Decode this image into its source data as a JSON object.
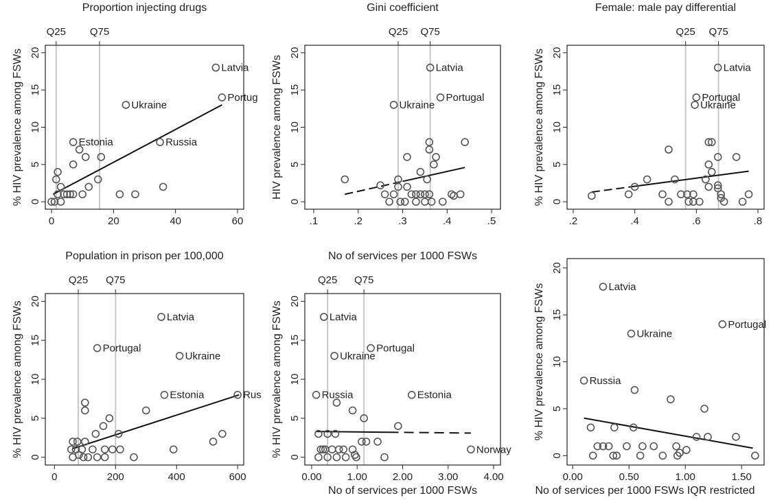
{
  "colors": {
    "point": "#555555",
    "fit": "#111111",
    "quartile": "#c8c8c8",
    "axis": "#222222"
  },
  "chart_data": [
    {
      "type": "scatter",
      "title": "Proportion injecting drugs",
      "ylabel": "% HIV prevalence among FSWs",
      "xlabel": "",
      "xlim": [
        -2,
        62
      ],
      "ylim": [
        -1,
        21
      ],
      "xticks": [
        0,
        20,
        40,
        60
      ],
      "xtick_labels": [
        "0",
        "20",
        "40",
        "60"
      ],
      "yticks": [
        0,
        5,
        10,
        15,
        20
      ],
      "ytick_labels": [
        "0",
        "5",
        "10",
        "15",
        "20"
      ],
      "quartiles": [
        {
          "label": "Q25",
          "x": 1.5
        },
        {
          "label": "Q75",
          "x": 15.5
        }
      ],
      "fit": {
        "x": [
          0.5,
          55
        ],
        "y": [
          1.0,
          13.0
        ],
        "dashed_from": null
      },
      "points": [
        {
          "x": 53,
          "y": 18,
          "label": "Latvia"
        },
        {
          "x": 55,
          "y": 14,
          "label": "Portug"
        },
        {
          "x": 24,
          "y": 13,
          "label": "Ukraine"
        },
        {
          "x": 7,
          "y": 8,
          "label": "Estonia"
        },
        {
          "x": 35,
          "y": 8,
          "label": "Russia"
        },
        {
          "x": 9,
          "y": 7
        },
        {
          "x": 11,
          "y": 6
        },
        {
          "x": 16,
          "y": 6
        },
        {
          "x": 7,
          "y": 5
        },
        {
          "x": 2,
          "y": 4
        },
        {
          "x": 1.5,
          "y": 3
        },
        {
          "x": 15,
          "y": 3
        },
        {
          "x": 3,
          "y": 2
        },
        {
          "x": 12,
          "y": 2
        },
        {
          "x": 36,
          "y": 2
        },
        {
          "x": 2,
          "y": 1
        },
        {
          "x": 4,
          "y": 1
        },
        {
          "x": 5,
          "y": 1
        },
        {
          "x": 6,
          "y": 1
        },
        {
          "x": 7,
          "y": 1
        },
        {
          "x": 10,
          "y": 1
        },
        {
          "x": 22,
          "y": 1
        },
        {
          "x": 27,
          "y": 1
        },
        {
          "x": 0,
          "y": 0
        },
        {
          "x": 1,
          "y": 0
        },
        {
          "x": 3,
          "y": 0
        }
      ]
    },
    {
      "type": "scatter",
      "title": "Gini coefficient",
      "ylabel": "HIV prevalence among FSWs",
      "xlabel": "",
      "xlim": [
        0.08,
        0.52
      ],
      "ylim": [
        -1,
        21
      ],
      "xticks": [
        0.1,
        0.2,
        0.3,
        0.4,
        0.5
      ],
      "xtick_labels": [
        ".1",
        ".2",
        ".3",
        ".4",
        ".5"
      ],
      "yticks": [
        0,
        5,
        10,
        15,
        20
      ],
      "ytick_labels": [
        "0",
        "5",
        "10",
        "15",
        "20"
      ],
      "quartiles": [
        {
          "label": "Q25",
          "x": 0.29
        },
        {
          "label": "Q75",
          "x": 0.362
        }
      ],
      "fit": {
        "x": [
          0.17,
          0.44
        ],
        "y": [
          1.0,
          4.6
        ],
        "dashed_from": 0.3
      },
      "points": [
        {
          "x": 0.362,
          "y": 18,
          "label": "Latvia"
        },
        {
          "x": 0.385,
          "y": 14,
          "label": "Portugal"
        },
        {
          "x": 0.28,
          "y": 13,
          "label": "Ukraine"
        },
        {
          "x": 0.36,
          "y": 8
        },
        {
          "x": 0.44,
          "y": 8
        },
        {
          "x": 0.36,
          "y": 7
        },
        {
          "x": 0.31,
          "y": 6
        },
        {
          "x": 0.375,
          "y": 6
        },
        {
          "x": 0.37,
          "y": 5
        },
        {
          "x": 0.34,
          "y": 4
        },
        {
          "x": 0.17,
          "y": 3
        },
        {
          "x": 0.29,
          "y": 3
        },
        {
          "x": 0.355,
          "y": 3
        },
        {
          "x": 0.25,
          "y": 2.2
        },
        {
          "x": 0.29,
          "y": 2
        },
        {
          "x": 0.31,
          "y": 2
        },
        {
          "x": 0.26,
          "y": 1
        },
        {
          "x": 0.28,
          "y": 1
        },
        {
          "x": 0.32,
          "y": 1
        },
        {
          "x": 0.33,
          "y": 1
        },
        {
          "x": 0.34,
          "y": 1
        },
        {
          "x": 0.35,
          "y": 1
        },
        {
          "x": 0.36,
          "y": 1
        },
        {
          "x": 0.41,
          "y": 1
        },
        {
          "x": 0.415,
          "y": 0.8
        },
        {
          "x": 0.43,
          "y": 1
        },
        {
          "x": 0.27,
          "y": 0
        },
        {
          "x": 0.295,
          "y": 0
        },
        {
          "x": 0.305,
          "y": 0
        },
        {
          "x": 0.33,
          "y": 0
        },
        {
          "x": 0.35,
          "y": 0
        },
        {
          "x": 0.365,
          "y": 0
        },
        {
          "x": 0.39,
          "y": 0
        }
      ]
    },
    {
      "type": "scatter",
      "title": "Female: male pay differential",
      "ylabel": "% HIV prevalence among FSWs",
      "xlabel": "",
      "xlim": [
        0.18,
        0.82
      ],
      "ylim": [
        -1,
        21
      ],
      "xticks": [
        0.2,
        0.4,
        0.6,
        0.8
      ],
      "xtick_labels": [
        ".2",
        ".4",
        ".6",
        ".8"
      ],
      "yticks": [
        0,
        5,
        10,
        15,
        20
      ],
      "ytick_labels": [
        "0",
        "5",
        "10",
        "15",
        "20"
      ],
      "quartiles": [
        {
          "label": "Q25",
          "x": 0.565
        },
        {
          "label": "Q75",
          "x": 0.672
        }
      ],
      "fit": {
        "x": [
          0.26,
          0.77
        ],
        "y": [
          1.3,
          4.1
        ],
        "dashed_from": 0.4
      },
      "points": [
        {
          "x": 0.67,
          "y": 18,
          "label": "Latvia"
        },
        {
          "x": 0.6,
          "y": 14,
          "label": "Portugal"
        },
        {
          "x": 0.595,
          "y": 13,
          "label": "Ukraine"
        },
        {
          "x": 0.64,
          "y": 8
        },
        {
          "x": 0.65,
          "y": 8
        },
        {
          "x": 0.51,
          "y": 7
        },
        {
          "x": 0.67,
          "y": 6
        },
        {
          "x": 0.73,
          "y": 6
        },
        {
          "x": 0.64,
          "y": 5
        },
        {
          "x": 0.65,
          "y": 4
        },
        {
          "x": 0.44,
          "y": 3
        },
        {
          "x": 0.53,
          "y": 3
        },
        {
          "x": 0.63,
          "y": 3
        },
        {
          "x": 0.4,
          "y": 2
        },
        {
          "x": 0.64,
          "y": 2
        },
        {
          "x": 0.67,
          "y": 2.2
        },
        {
          "x": 0.67,
          "y": 1.8
        },
        {
          "x": 0.38,
          "y": 1
        },
        {
          "x": 0.49,
          "y": 1
        },
        {
          "x": 0.55,
          "y": 1
        },
        {
          "x": 0.57,
          "y": 1
        },
        {
          "x": 0.59,
          "y": 1
        },
        {
          "x": 0.68,
          "y": 1
        },
        {
          "x": 0.77,
          "y": 1
        },
        {
          "x": 0.26,
          "y": 0.8
        },
        {
          "x": 0.68,
          "y": 0.5
        },
        {
          "x": 0.51,
          "y": 0
        },
        {
          "x": 0.575,
          "y": 0
        },
        {
          "x": 0.59,
          "y": 0
        },
        {
          "x": 0.61,
          "y": 0
        },
        {
          "x": 0.69,
          "y": 0
        },
        {
          "x": 0.75,
          "y": 0
        }
      ]
    },
    {
      "type": "scatter",
      "title": "Population in prison per 100,000",
      "ylabel": "% HIV prevalence among FSWs",
      "xlabel": "",
      "xlim": [
        -30,
        620
      ],
      "ylim": [
        -1,
        21
      ],
      "xticks": [
        0,
        200,
        400,
        600
      ],
      "xtick_labels": [
        "0",
        "200",
        "400",
        "600"
      ],
      "yticks": [
        0,
        5,
        10,
        15,
        20
      ],
      "ytick_labels": [
        "0",
        "5",
        "10",
        "15",
        "20"
      ],
      "quartiles": [
        {
          "label": "Q25",
          "x": 78
        },
        {
          "label": "Q75",
          "x": 200
        }
      ],
      "fit": {
        "x": [
          60,
          605
        ],
        "y": [
          1.1,
          8.0
        ],
        "dashed_from": null
      },
      "points": [
        {
          "x": 350,
          "y": 18,
          "label": "Latvia"
        },
        {
          "x": 140,
          "y": 14,
          "label": "Portugal"
        },
        {
          "x": 410,
          "y": 13,
          "label": "Ukraine"
        },
        {
          "x": 360,
          "y": 8,
          "label": "Estonia"
        },
        {
          "x": 600,
          "y": 8,
          "label": "Rus"
        },
        {
          "x": 100,
          "y": 7
        },
        {
          "x": 100,
          "y": 6
        },
        {
          "x": 300,
          "y": 6
        },
        {
          "x": 180,
          "y": 5
        },
        {
          "x": 160,
          "y": 4
        },
        {
          "x": 135,
          "y": 3
        },
        {
          "x": 210,
          "y": 3
        },
        {
          "x": 550,
          "y": 3
        },
        {
          "x": 60,
          "y": 2
        },
        {
          "x": 75,
          "y": 2
        },
        {
          "x": 100,
          "y": 2
        },
        {
          "x": 520,
          "y": 2
        },
        {
          "x": 55,
          "y": 1
        },
        {
          "x": 70,
          "y": 1
        },
        {
          "x": 90,
          "y": 1
        },
        {
          "x": 125,
          "y": 1
        },
        {
          "x": 165,
          "y": 1
        },
        {
          "x": 190,
          "y": 1
        },
        {
          "x": 215,
          "y": 1
        },
        {
          "x": 390,
          "y": 1
        },
        {
          "x": 60,
          "y": 0
        },
        {
          "x": 80,
          "y": 0.3
        },
        {
          "x": 95,
          "y": 0
        },
        {
          "x": 110,
          "y": 0
        },
        {
          "x": 140,
          "y": 0
        },
        {
          "x": 165,
          "y": 0
        },
        {
          "x": 260,
          "y": 0
        }
      ]
    },
    {
      "type": "scatter",
      "title": "No of services per 1000 FSWs",
      "ylabel": "% HIV prevalence among FSWs",
      "xlabel": "No of services per 1000 FSWs",
      "xlim": [
        -0.15,
        4.15
      ],
      "ylim": [
        -1,
        21
      ],
      "xticks": [
        0,
        1,
        2,
        3,
        4
      ],
      "xtick_labels": [
        "0.00",
        "1.00",
        "2.00",
        "3.00",
        "4.00"
      ],
      "yticks": [
        0,
        5,
        10,
        15,
        20
      ],
      "ytick_labels": [
        "0",
        "5",
        "10",
        "15",
        "20"
      ],
      "quartiles": [
        {
          "label": "Q25",
          "x": 0.35
        },
        {
          "label": "Q75",
          "x": 1.15
        }
      ],
      "fit": {
        "x": [
          0.1,
          3.5
        ],
        "y": [
          3.3,
          3.1
        ],
        "dashed_from": 1.7
      },
      "points": [
        {
          "x": 0.27,
          "y": 18,
          "label": "Latvia"
        },
        {
          "x": 1.3,
          "y": 14,
          "label": "Portugal"
        },
        {
          "x": 0.5,
          "y": 13,
          "label": "Ukraine"
        },
        {
          "x": 0.1,
          "y": 8,
          "label": "Russia"
        },
        {
          "x": 2.2,
          "y": 8,
          "label": "Estonia"
        },
        {
          "x": 3.5,
          "y": 1,
          "label": "Norway"
        },
        {
          "x": 0.55,
          "y": 7
        },
        {
          "x": 0.9,
          "y": 6
        },
        {
          "x": 1.15,
          "y": 5
        },
        {
          "x": 1.9,
          "y": 4
        },
        {
          "x": 0.15,
          "y": 3
        },
        {
          "x": 0.35,
          "y": 3
        },
        {
          "x": 0.52,
          "y": 3
        },
        {
          "x": 1.1,
          "y": 2
        },
        {
          "x": 1.2,
          "y": 2
        },
        {
          "x": 1.45,
          "y": 2
        },
        {
          "x": 0.2,
          "y": 1
        },
        {
          "x": 0.25,
          "y": 1
        },
        {
          "x": 0.3,
          "y": 1
        },
        {
          "x": 0.45,
          "y": 1
        },
        {
          "x": 0.6,
          "y": 1
        },
        {
          "x": 0.7,
          "y": 1
        },
        {
          "x": 0.9,
          "y": 1
        },
        {
          "x": 0.15,
          "y": 0
        },
        {
          "x": 0.35,
          "y": 0
        },
        {
          "x": 0.55,
          "y": 0
        },
        {
          "x": 0.75,
          "y": 0
        },
        {
          "x": 0.95,
          "y": 0.3
        },
        {
          "x": 0.98,
          "y": 0
        },
        {
          "x": 1.6,
          "y": 0
        }
      ]
    },
    {
      "type": "scatter",
      "title": "",
      "ylabel": "% HIV prevalence among FSWs",
      "xlabel": "No of services per 1000 FSWs IQR restricted",
      "xlim": [
        -0.05,
        1.7
      ],
      "ylim": [
        -1,
        21
      ],
      "xticks": [
        0,
        0.5,
        1,
        1.5
      ],
      "xtick_labels": [
        "0.00",
        "0.50",
        "1.00",
        "1.50"
      ],
      "yticks": [
        0,
        5,
        10,
        15,
        20
      ],
      "ytick_labels": [
        "0",
        "5",
        "10",
        "15",
        "20"
      ],
      "quartiles": [],
      "fit": {
        "x": [
          0.1,
          1.6
        ],
        "y": [
          4.0,
          0.8
        ],
        "dashed_from": null
      },
      "points": [
        {
          "x": 0.27,
          "y": 18,
          "label": "Latvia"
        },
        {
          "x": 1.33,
          "y": 14,
          "label": "Portugal"
        },
        {
          "x": 0.52,
          "y": 13,
          "label": "Ukraine"
        },
        {
          "x": 0.1,
          "y": 8,
          "label": "Russia"
        },
        {
          "x": 0.55,
          "y": 7
        },
        {
          "x": 0.87,
          "y": 6
        },
        {
          "x": 1.17,
          "y": 5
        },
        {
          "x": 0.16,
          "y": 3
        },
        {
          "x": 0.37,
          "y": 3
        },
        {
          "x": 0.54,
          "y": 3
        },
        {
          "x": 1.1,
          "y": 2
        },
        {
          "x": 1.2,
          "y": 2
        },
        {
          "x": 1.45,
          "y": 2
        },
        {
          "x": 0.22,
          "y": 1
        },
        {
          "x": 0.27,
          "y": 1
        },
        {
          "x": 0.32,
          "y": 1
        },
        {
          "x": 0.48,
          "y": 1
        },
        {
          "x": 0.62,
          "y": 1
        },
        {
          "x": 0.72,
          "y": 1
        },
        {
          "x": 0.92,
          "y": 1
        },
        {
          "x": 0.18,
          "y": 0
        },
        {
          "x": 0.36,
          "y": 0
        },
        {
          "x": 0.39,
          "y": 0
        },
        {
          "x": 0.6,
          "y": 0
        },
        {
          "x": 0.8,
          "y": 0
        },
        {
          "x": 0.93,
          "y": 0
        },
        {
          "x": 0.95,
          "y": 0.3
        },
        {
          "x": 1.01,
          "y": 0.6
        },
        {
          "x": 1.62,
          "y": 0
        }
      ]
    }
  ]
}
